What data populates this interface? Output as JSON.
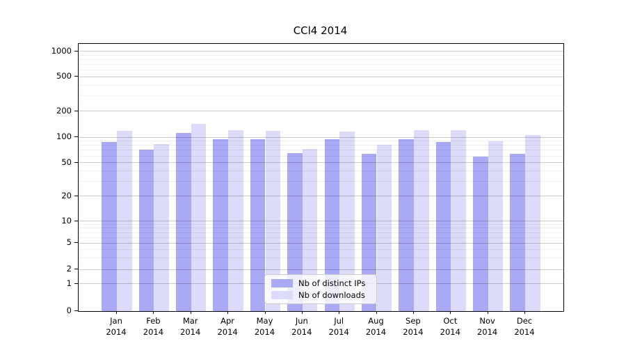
{
  "title": "CCl4 2014",
  "chart_data": {
    "type": "bar",
    "title": "CCl4 2014",
    "yscale": "symlog",
    "grid": true,
    "legend_position": "lower center",
    "ylim": [
      0,
      1200
    ],
    "yticks": [
      0,
      1,
      2,
      5,
      10,
      20,
      50,
      100,
      200,
      500,
      1000
    ],
    "categories": [
      "Jan 2014",
      "Feb 2014",
      "Mar 2014",
      "Apr 2014",
      "May 2014",
      "Jun 2014",
      "Jul 2014",
      "Aug 2014",
      "Sep 2014",
      "Oct 2014",
      "Nov 2014",
      "Dec 2014"
    ],
    "series": [
      {
        "name": "Nb of distinct IPs",
        "color": "#a9a9f6",
        "values": [
          88,
          71,
          112,
          94,
          94,
          65,
          95,
          64,
          94,
          87,
          59,
          64
        ]
      },
      {
        "name": "Nb of downloads",
        "color": "#dcdcfa",
        "values": [
          119,
          83,
          143,
          120,
          119,
          72,
          117,
          81,
          120,
          120,
          90,
          105
        ]
      }
    ]
  },
  "colors": {
    "grid_major": "#cccccc",
    "grid_minor": "#ebebeb",
    "spine": "#000000",
    "legend_border": "#cccccc",
    "legend_background": "rgba(255,255,255,0.8)"
  }
}
